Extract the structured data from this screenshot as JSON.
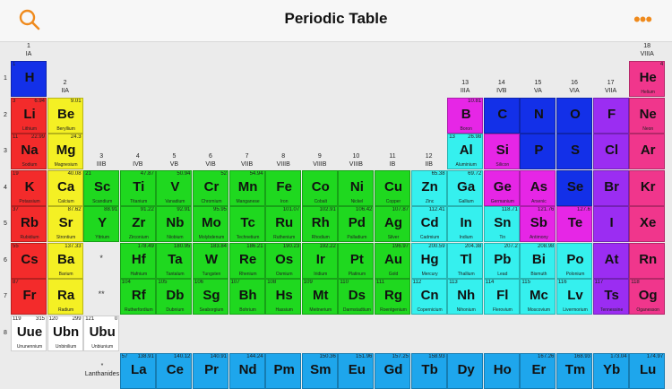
{
  "header": {
    "title": "Periodic Table",
    "search_icon": "search-icon",
    "more_icon": "more-options-icon",
    "more_glyph": "•••",
    "accent": "#ef8a1c"
  },
  "colors": {
    "h": "#1330e8",
    "alkali": "#f32b2b",
    "alkaline": "#f4f024",
    "transition": "#1fd81f",
    "post": "#35f0ee",
    "metalloid": "#e626e6",
    "nonmetal": "#1330e8",
    "halogen": "#9b2df2",
    "noble": "#f0368c",
    "unknown": "#ffffff",
    "lanth": "#1ea6ec"
  },
  "groups": [
    {
      "col": 0,
      "num": "1",
      "roman": "IA"
    },
    {
      "col": 1,
      "num": "2",
      "roman": "IIA"
    },
    {
      "col": 2,
      "num": "3",
      "roman": "IIIB"
    },
    {
      "col": 3,
      "num": "4",
      "roman": "IVB"
    },
    {
      "col": 4,
      "num": "5",
      "roman": "VB"
    },
    {
      "col": 5,
      "num": "6",
      "roman": "VIB"
    },
    {
      "col": 6,
      "num": "7",
      "roman": "VIIB"
    },
    {
      "col": 7,
      "num": "8",
      "roman": "VIIIB"
    },
    {
      "col": 8,
      "num": "9",
      "roman": "VIIIB"
    },
    {
      "col": 9,
      "num": "10",
      "roman": "VIIIB"
    },
    {
      "col": 10,
      "num": "11",
      "roman": "IB"
    },
    {
      "col": 11,
      "num": "12",
      "roman": "IIB"
    },
    {
      "col": 12,
      "num": "13",
      "roman": "IIIA"
    },
    {
      "col": 13,
      "num": "14",
      "roman": "IVB"
    },
    {
      "col": 14,
      "num": "15",
      "roman": "VA"
    },
    {
      "col": 15,
      "num": "16",
      "roman": "VIA"
    },
    {
      "col": 16,
      "num": "17",
      "roman": "VIIA"
    },
    {
      "col": 17,
      "num": "18",
      "roman": "VIIIA"
    }
  ],
  "periods": [
    "1",
    "2",
    "3",
    "4",
    "5",
    "6",
    "7",
    "8"
  ],
  "markers": [
    {
      "row": 5,
      "col": 2,
      "text": "*"
    },
    {
      "row": 6,
      "col": 2,
      "text": "**"
    }
  ],
  "lanthanides_label": {
    "star": "*",
    "text": "Lanthanides"
  },
  "elements": [
    {
      "row": 0,
      "col": 0,
      "num": "1",
      "mass": "",
      "sym": "H",
      "name": "",
      "cat": "h"
    },
    {
      "row": 0,
      "col": 17,
      "num": "",
      "mass": "4",
      "sym": "He",
      "name": "Helium",
      "cat": "noble"
    },
    {
      "row": 1,
      "col": 0,
      "num": "3",
      "mass": "6.94",
      "sym": "Li",
      "name": "Lithium",
      "cat": "alkali"
    },
    {
      "row": 1,
      "col": 1,
      "num": "",
      "mass": "9.01",
      "sym": "Be",
      "name": "Beryllium",
      "cat": "alkaline"
    },
    {
      "row": 1,
      "col": 12,
      "num": "",
      "mass": "10.81",
      "sym": "B",
      "name": "Boron",
      "cat": "metalloid"
    },
    {
      "row": 1,
      "col": 13,
      "num": "",
      "mass": "",
      "sym": "C",
      "name": "",
      "cat": "nonmetal"
    },
    {
      "row": 1,
      "col": 14,
      "num": "",
      "mass": "",
      "sym": "N",
      "name": "",
      "cat": "nonmetal"
    },
    {
      "row": 1,
      "col": 15,
      "num": "",
      "mass": "",
      "sym": "O",
      "name": "",
      "cat": "nonmetal"
    },
    {
      "row": 1,
      "col": 16,
      "num": "",
      "mass": "",
      "sym": "F",
      "name": "",
      "cat": "halogen"
    },
    {
      "row": 1,
      "col": 17,
      "num": "",
      "mass": "",
      "sym": "Ne",
      "name": "Neon",
      "cat": "noble"
    },
    {
      "row": 2,
      "col": 0,
      "num": "11",
      "mass": "22.99",
      "sym": "Na",
      "name": "Sodium",
      "cat": "alkali"
    },
    {
      "row": 2,
      "col": 1,
      "num": "",
      "mass": "24.3",
      "sym": "Mg",
      "name": "Magnesium",
      "cat": "alkaline"
    },
    {
      "row": 2,
      "col": 12,
      "num": "13",
      "mass": "26.98",
      "sym": "Al",
      "name": "Aluminium",
      "cat": "post"
    },
    {
      "row": 2,
      "col": 13,
      "num": "",
      "mass": "",
      "sym": "Si",
      "name": "Silicon",
      "cat": "metalloid"
    },
    {
      "row": 2,
      "col": 14,
      "num": "",
      "mass": "",
      "sym": "P",
      "name": "",
      "cat": "nonmetal"
    },
    {
      "row": 2,
      "col": 15,
      "num": "",
      "mass": "",
      "sym": "S",
      "name": "",
      "cat": "nonmetal"
    },
    {
      "row": 2,
      "col": 16,
      "num": "",
      "mass": "",
      "sym": "Cl",
      "name": "",
      "cat": "halogen"
    },
    {
      "row": 2,
      "col": 17,
      "num": "",
      "mass": "",
      "sym": "Ar",
      "name": "",
      "cat": "noble"
    },
    {
      "row": 3,
      "col": 0,
      "num": "19",
      "mass": "",
      "sym": "K",
      "name": "Potassium",
      "cat": "alkali"
    },
    {
      "row": 3,
      "col": 1,
      "num": "",
      "mass": "40.08",
      "sym": "Ca",
      "name": "Calcium",
      "cat": "alkaline"
    },
    {
      "row": 3,
      "col": 2,
      "num": "21",
      "mass": "",
      "sym": "Sc",
      "name": "Scandium",
      "cat": "transition"
    },
    {
      "row": 3,
      "col": 3,
      "num": "",
      "mass": "47.87",
      "sym": "Ti",
      "name": "Titanium",
      "cat": "transition"
    },
    {
      "row": 3,
      "col": 4,
      "num": "",
      "mass": "50.94",
      "sym": "V",
      "name": "Vanadium",
      "cat": "transition"
    },
    {
      "row": 3,
      "col": 5,
      "num": "",
      "mass": "52",
      "sym": "Cr",
      "name": "Chromium",
      "cat": "transition"
    },
    {
      "row": 3,
      "col": 6,
      "num": "",
      "mass": "54.94",
      "sym": "Mn",
      "name": "Manganese",
      "cat": "transition"
    },
    {
      "row": 3,
      "col": 7,
      "num": "",
      "mass": "",
      "sym": "Fe",
      "name": "Iron",
      "cat": "transition"
    },
    {
      "row": 3,
      "col": 8,
      "num": "",
      "mass": "",
      "sym": "Co",
      "name": "Cobalt",
      "cat": "transition"
    },
    {
      "row": 3,
      "col": 9,
      "num": "",
      "mass": "",
      "sym": "Ni",
      "name": "Nickel",
      "cat": "transition"
    },
    {
      "row": 3,
      "col": 10,
      "num": "",
      "mass": "",
      "sym": "Cu",
      "name": "Copper",
      "cat": "transition"
    },
    {
      "row": 3,
      "col": 11,
      "num": "",
      "mass": "65.38",
      "sym": "Zn",
      "name": "Zinc",
      "cat": "post"
    },
    {
      "row": 3,
      "col": 12,
      "num": "",
      "mass": "69.72",
      "sym": "Ga",
      "name": "Gallium",
      "cat": "post"
    },
    {
      "row": 3,
      "col": 13,
      "num": "",
      "mass": "",
      "sym": "Ge",
      "name": "Germanium",
      "cat": "metalloid"
    },
    {
      "row": 3,
      "col": 14,
      "num": "",
      "mass": "",
      "sym": "As",
      "name": "Arsenic",
      "cat": "metalloid"
    },
    {
      "row": 3,
      "col": 15,
      "num": "",
      "mass": "",
      "sym": "Se",
      "name": "",
      "cat": "nonmetal"
    },
    {
      "row": 3,
      "col": 16,
      "num": "",
      "mass": "",
      "sym": "Br",
      "name": "",
      "cat": "halogen"
    },
    {
      "row": 3,
      "col": 17,
      "num": "",
      "mass": "",
      "sym": "Kr",
      "name": "",
      "cat": "noble"
    },
    {
      "row": 4,
      "col": 0,
      "num": "37",
      "mass": "",
      "sym": "Rb",
      "name": "Rubidium",
      "cat": "alkali"
    },
    {
      "row": 4,
      "col": 1,
      "num": "",
      "mass": "87.62",
      "sym": "Sr",
      "name": "Strontium",
      "cat": "alkaline"
    },
    {
      "row": 4,
      "col": 2,
      "num": "",
      "mass": "88.91",
      "sym": "Y",
      "name": "Yttrium",
      "cat": "transition"
    },
    {
      "row": 4,
      "col": 3,
      "num": "",
      "mass": "91.22",
      "sym": "Zr",
      "name": "Zirconium",
      "cat": "transition"
    },
    {
      "row": 4,
      "col": 4,
      "num": "",
      "mass": "92.91",
      "sym": "Nb",
      "name": "Niobium",
      "cat": "transition"
    },
    {
      "row": 4,
      "col": 5,
      "num": "",
      "mass": "95.95",
      "sym": "Mo",
      "name": "Molybdenum",
      "cat": "transition"
    },
    {
      "row": 4,
      "col": 6,
      "num": "",
      "mass": "",
      "sym": "Tc",
      "name": "Technetium",
      "cat": "transition"
    },
    {
      "row": 4,
      "col": 7,
      "num": "",
      "mass": "101.07",
      "sym": "Ru",
      "name": "Ruthenium",
      "cat": "transition"
    },
    {
      "row": 4,
      "col": 8,
      "num": "",
      "mass": "102.91",
      "sym": "Rh",
      "name": "Rhodium",
      "cat": "transition"
    },
    {
      "row": 4,
      "col": 9,
      "num": "",
      "mass": "106.42",
      "sym": "Pd",
      "name": "Palladium",
      "cat": "transition"
    },
    {
      "row": 4,
      "col": 10,
      "num": "",
      "mass": "107.87",
      "sym": "Ag",
      "name": "Silver",
      "cat": "transition"
    },
    {
      "row": 4,
      "col": 11,
      "num": "",
      "mass": "112.41",
      "sym": "Cd",
      "name": "Cadmium",
      "cat": "post"
    },
    {
      "row": 4,
      "col": 12,
      "num": "",
      "mass": "",
      "sym": "In",
      "name": "Indium",
      "cat": "post"
    },
    {
      "row": 4,
      "col": 13,
      "num": "",
      "mass": "118.71",
      "sym": "Sn",
      "name": "Tin",
      "cat": "post"
    },
    {
      "row": 4,
      "col": 14,
      "num": "",
      "mass": "121.76",
      "sym": "Sb",
      "name": "Antimony",
      "cat": "metalloid"
    },
    {
      "row": 4,
      "col": 15,
      "num": "",
      "mass": "127.6",
      "sym": "Te",
      "name": "",
      "cat": "metalloid"
    },
    {
      "row": 4,
      "col": 16,
      "num": "",
      "mass": "",
      "sym": "I",
      "name": "",
      "cat": "halogen"
    },
    {
      "row": 4,
      "col": 17,
      "num": "",
      "mass": "",
      "sym": "Xe",
      "name": "",
      "cat": "noble"
    },
    {
      "row": 5,
      "col": 0,
      "num": "55",
      "mass": "",
      "sym": "Cs",
      "name": "",
      "cat": "alkali"
    },
    {
      "row": 5,
      "col": 1,
      "num": "",
      "mass": "137.33",
      "sym": "Ba",
      "name": "Barium",
      "cat": "alkaline"
    },
    {
      "row": 5,
      "col": 3,
      "num": "",
      "mass": "178.49",
      "sym": "Hf",
      "name": "Hafnium",
      "cat": "transition"
    },
    {
      "row": 5,
      "col": 4,
      "num": "",
      "mass": "180.95",
      "sym": "Ta",
      "name": "Tantalum",
      "cat": "transition"
    },
    {
      "row": 5,
      "col": 5,
      "num": "",
      "mass": "183.84",
      "sym": "W",
      "name": "Tungsten",
      "cat": "transition"
    },
    {
      "row": 5,
      "col": 6,
      "num": "",
      "mass": "186.21",
      "sym": "Re",
      "name": "Rhenium",
      "cat": "transition"
    },
    {
      "row": 5,
      "col": 7,
      "num": "",
      "mass": "190.23",
      "sym": "Os",
      "name": "Osmium",
      "cat": "transition"
    },
    {
      "row": 5,
      "col": 8,
      "num": "",
      "mass": "192.22",
      "sym": "Ir",
      "name": "Iridium",
      "cat": "transition"
    },
    {
      "row": 5,
      "col": 9,
      "num": "",
      "mass": "",
      "sym": "Pt",
      "name": "Platinum",
      "cat": "transition"
    },
    {
      "row": 5,
      "col": 10,
      "num": "",
      "mass": "196.97",
      "sym": "Au",
      "name": "Gold",
      "cat": "transition"
    },
    {
      "row": 5,
      "col": 11,
      "num": "",
      "mass": "200.59",
      "sym": "Hg",
      "name": "Mercury",
      "cat": "post"
    },
    {
      "row": 5,
      "col": 12,
      "num": "",
      "mass": "204.38",
      "sym": "Tl",
      "name": "Thallium",
      "cat": "post"
    },
    {
      "row": 5,
      "col": 13,
      "num": "",
      "mass": "207.2",
      "sym": "Pb",
      "name": "Lead",
      "cat": "post"
    },
    {
      "row": 5,
      "col": 14,
      "num": "",
      "mass": "208.98",
      "sym": "Bi",
      "name": "Bismuth",
      "cat": "post"
    },
    {
      "row": 5,
      "col": 15,
      "num": "",
      "mass": "",
      "sym": "Po",
      "name": "Polonium",
      "cat": "post"
    },
    {
      "row": 5,
      "col": 16,
      "num": "",
      "mass": "",
      "sym": "At",
      "name": "",
      "cat": "halogen"
    },
    {
      "row": 5,
      "col": 17,
      "num": "",
      "mass": "",
      "sym": "Rn",
      "name": "",
      "cat": "noble"
    },
    {
      "row": 6,
      "col": 0,
      "num": "87",
      "mass": "",
      "sym": "Fr",
      "name": "",
      "cat": "alkali"
    },
    {
      "row": 6,
      "col": 1,
      "num": "",
      "mass": "",
      "sym": "Ra",
      "name": "Radium",
      "cat": "alkaline"
    },
    {
      "row": 6,
      "col": 3,
      "num": "104",
      "mass": "",
      "sym": "Rf",
      "name": "Rutherfordium",
      "cat": "transition"
    },
    {
      "row": 6,
      "col": 4,
      "num": "105",
      "mass": "",
      "sym": "Db",
      "name": "Dubnium",
      "cat": "transition"
    },
    {
      "row": 6,
      "col": 5,
      "num": "106",
      "mass": "",
      "sym": "Sg",
      "name": "Seaborgium",
      "cat": "transition"
    },
    {
      "row": 6,
      "col": 6,
      "num": "107",
      "mass": "",
      "sym": "Bh",
      "name": "Bohrium",
      "cat": "transition"
    },
    {
      "row": 6,
      "col": 7,
      "num": "108",
      "mass": "",
      "sym": "Hs",
      "name": "Hassium",
      "cat": "transition"
    },
    {
      "row": 6,
      "col": 8,
      "num": "109",
      "mass": "",
      "sym": "Mt",
      "name": "Meitnerium",
      "cat": "transition"
    },
    {
      "row": 6,
      "col": 9,
      "num": "110",
      "mass": "",
      "sym": "Ds",
      "name": "Darmstadtium",
      "cat": "transition"
    },
    {
      "row": 6,
      "col": 10,
      "num": "111",
      "mass": "",
      "sym": "Rg",
      "name": "Roentgenium",
      "cat": "transition"
    },
    {
      "row": 6,
      "col": 11,
      "num": "112",
      "mass": "",
      "sym": "Cn",
      "name": "Copernicium",
      "cat": "post"
    },
    {
      "row": 6,
      "col": 12,
      "num": "113",
      "mass": "",
      "sym": "Nh",
      "name": "Nihonium",
      "cat": "post"
    },
    {
      "row": 6,
      "col": 13,
      "num": "114",
      "mass": "",
      "sym": "Fl",
      "name": "Flerovium",
      "cat": "post"
    },
    {
      "row": 6,
      "col": 14,
      "num": "115",
      "mass": "",
      "sym": "Mc",
      "name": "Moscovium",
      "cat": "post"
    },
    {
      "row": 6,
      "col": 15,
      "num": "116",
      "mass": "",
      "sym": "Lv",
      "name": "Livermorium",
      "cat": "post"
    },
    {
      "row": 6,
      "col": 16,
      "num": "117",
      "mass": "",
      "sym": "Ts",
      "name": "Tennessine",
      "cat": "halogen"
    },
    {
      "row": 6,
      "col": 17,
      "num": "118",
      "mass": "",
      "sym": "Og",
      "name": "Oganesson",
      "cat": "noble"
    },
    {
      "row": 7,
      "col": 0,
      "num": "119",
      "mass": "315",
      "sym": "Uue",
      "name": "Ununennium",
      "cat": "unknown"
    },
    {
      "row": 7,
      "col": 1,
      "num": "120",
      "mass": "299",
      "sym": "Ubn",
      "name": "Unbinilium",
      "cat": "unknown"
    },
    {
      "row": 7,
      "col": 2,
      "num": "121",
      "mass": "0",
      "sym": "Ubu",
      "name": "Unbiunium",
      "cat": "unknown"
    },
    {
      "row": 8,
      "col": 3,
      "num": "57",
      "mass": "138.91",
      "sym": "La",
      "name": "",
      "cat": "lanth"
    },
    {
      "row": 8,
      "col": 4,
      "num": "",
      "mass": "140.12",
      "sym": "Ce",
      "name": "",
      "cat": "lanth"
    },
    {
      "row": 8,
      "col": 5,
      "num": "",
      "mass": "140.91",
      "sym": "Pr",
      "name": "",
      "cat": "lanth"
    },
    {
      "row": 8,
      "col": 6,
      "num": "",
      "mass": "144.24",
      "sym": "Nd",
      "name": "",
      "cat": "lanth"
    },
    {
      "row": 8,
      "col": 7,
      "num": "",
      "mass": "",
      "sym": "Pm",
      "name": "",
      "cat": "lanth"
    },
    {
      "row": 8,
      "col": 8,
      "num": "",
      "mass": "150.36",
      "sym": "Sm",
      "name": "",
      "cat": "lanth"
    },
    {
      "row": 8,
      "col": 9,
      "num": "",
      "mass": "151.96",
      "sym": "Eu",
      "name": "",
      "cat": "lanth"
    },
    {
      "row": 8,
      "col": 10,
      "num": "",
      "mass": "157.25",
      "sym": "Gd",
      "name": "",
      "cat": "lanth"
    },
    {
      "row": 8,
      "col": 11,
      "num": "",
      "mass": "158.93",
      "sym": "Tb",
      "name": "",
      "cat": "lanth"
    },
    {
      "row": 8,
      "col": 12,
      "num": "",
      "mass": "",
      "sym": "Dy",
      "name": "",
      "cat": "lanth"
    },
    {
      "row": 8,
      "col": 13,
      "num": "",
      "mass": "",
      "sym": "Ho",
      "name": "",
      "cat": "lanth"
    },
    {
      "row": 8,
      "col": 14,
      "num": "",
      "mass": "167.26",
      "sym": "Er",
      "name": "",
      "cat": "lanth"
    },
    {
      "row": 8,
      "col": 15,
      "num": "",
      "mass": "168.93",
      "sym": "Tm",
      "name": "",
      "cat": "lanth"
    },
    {
      "row": 8,
      "col": 16,
      "num": "",
      "mass": "173.04",
      "sym": "Yb",
      "name": "",
      "cat": "lanth"
    },
    {
      "row": 8,
      "col": 17,
      "num": "",
      "mass": "174.97",
      "sym": "Lu",
      "name": "",
      "cat": "lanth"
    }
  ]
}
